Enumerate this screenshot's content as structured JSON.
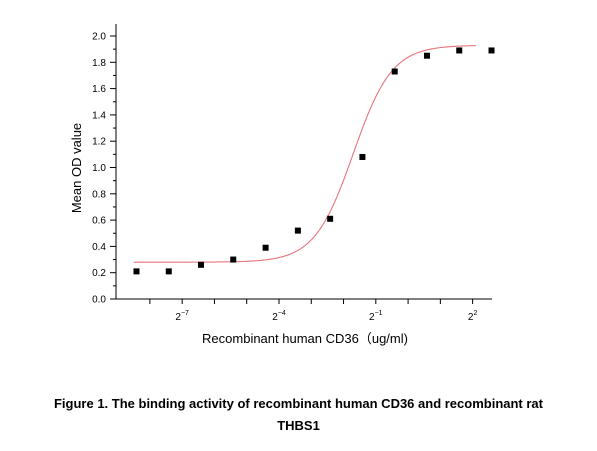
{
  "chart_data": {
    "type": "scatter",
    "xlabel": "Recombinant human CD36（ug/ml)",
    "ylabel": "Mean OD value",
    "ylim": [
      0,
      2.0
    ],
    "yticks": [
      "0.0",
      "0.2",
      "0.4",
      "0.6",
      "0.8",
      "1.0",
      "1.2",
      "1.4",
      "1.6",
      "1.8",
      "2.0"
    ],
    "xticks": [
      {
        "base": "2",
        "exp": "-7"
      },
      {
        "base": "2",
        "exp": "-4"
      },
      {
        "base": "2",
        "exp": "-1"
      },
      {
        "base": "2",
        "exp": "2"
      }
    ],
    "x_scale": "log2",
    "xlim_log2": [
      -9.05,
      2.6
    ],
    "series": [
      {
        "marker": "square",
        "color": "#000000",
        "points": [
          {
            "x": 0.00293,
            "y": 0.21
          },
          {
            "x": 0.00586,
            "y": 0.21
          },
          {
            "x": 0.0117,
            "y": 0.26
          },
          {
            "x": 0.0234,
            "y": 0.3
          },
          {
            "x": 0.0469,
            "y": 0.39
          },
          {
            "x": 0.0938,
            "y": 0.52
          },
          {
            "x": 0.1875,
            "y": 0.61
          },
          {
            "x": 0.375,
            "y": 1.08
          },
          {
            "x": 0.75,
            "y": 1.73
          },
          {
            "x": 1.5,
            "y": 1.85
          },
          {
            "x": 3.0,
            "y": 1.89
          },
          {
            "x": 6.0,
            "y": 1.89
          }
        ]
      }
    ],
    "fit_curve": {
      "color": "#e8747c",
      "model": "logistic",
      "bottom": 0.28,
      "top": 1.93,
      "ec50_log2": -1.7,
      "slope_log2": 0.6,
      "x_from_log2": -8.5,
      "x_to_log2": 2.1
    },
    "grid": false
  },
  "caption": {
    "line1": "Figure 1. The binding activity of recombinant human CD36 and recombinant rat",
    "line2": "THBS1"
  }
}
